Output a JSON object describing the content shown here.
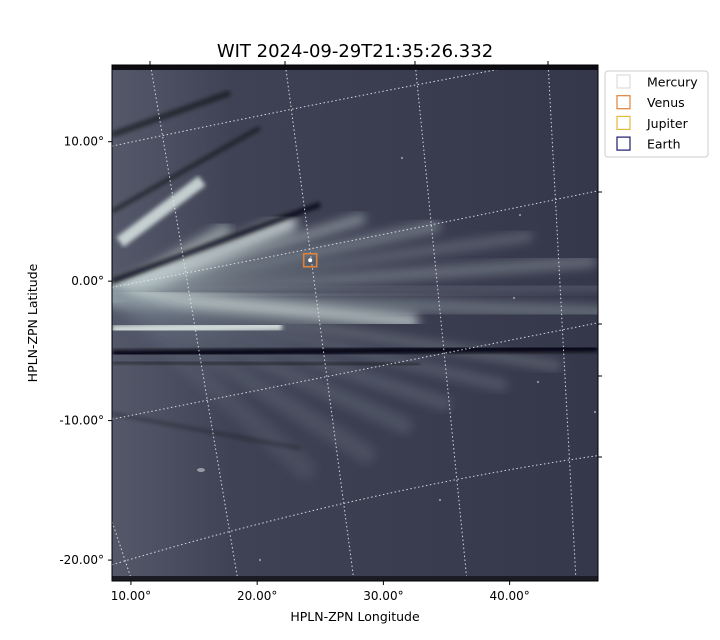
{
  "chart_data": {
    "type": "image",
    "title": "WIT 2024-09-29T21:35:26.332",
    "xlabel": "HPLN-ZPN Longitude",
    "ylabel": "HPLN-ZPN Latitude",
    "xlim": [
      8.5,
      47.0
    ],
    "ylim": [
      -21.5,
      15.5
    ],
    "x_ticks": [
      {
        "value": 10,
        "label": "10.00°"
      },
      {
        "value": 20,
        "label": "20.00°"
      },
      {
        "value": 30,
        "label": "30.00°"
      },
      {
        "value": 40,
        "label": "40.00°"
      }
    ],
    "y_ticks": [
      {
        "value": 10,
        "label": "10.00°"
      },
      {
        "value": 0,
        "label": "0.00°"
      },
      {
        "value": -10,
        "label": "-10.00°"
      },
      {
        "value": -20,
        "label": "-20.00°"
      }
    ],
    "grid": true,
    "legend": {
      "placement": "upper-right-outside",
      "entries": [
        {
          "name": "Mercury",
          "color": "#dcdcdc"
        },
        {
          "name": "Venus",
          "color": "#e0823a"
        },
        {
          "name": "Jupiter",
          "color": "#e6b93a"
        },
        {
          "name": "Earth",
          "color": "#1a1a6e"
        }
      ]
    },
    "markers": [
      {
        "name": "Venus",
        "lon": 24.2,
        "lat": 1.5,
        "color": "#e0823a"
      }
    ],
    "colors": {
      "background": "#343649",
      "streamer": "#c7d3d3",
      "dark_lane": "#07070b"
    }
  }
}
